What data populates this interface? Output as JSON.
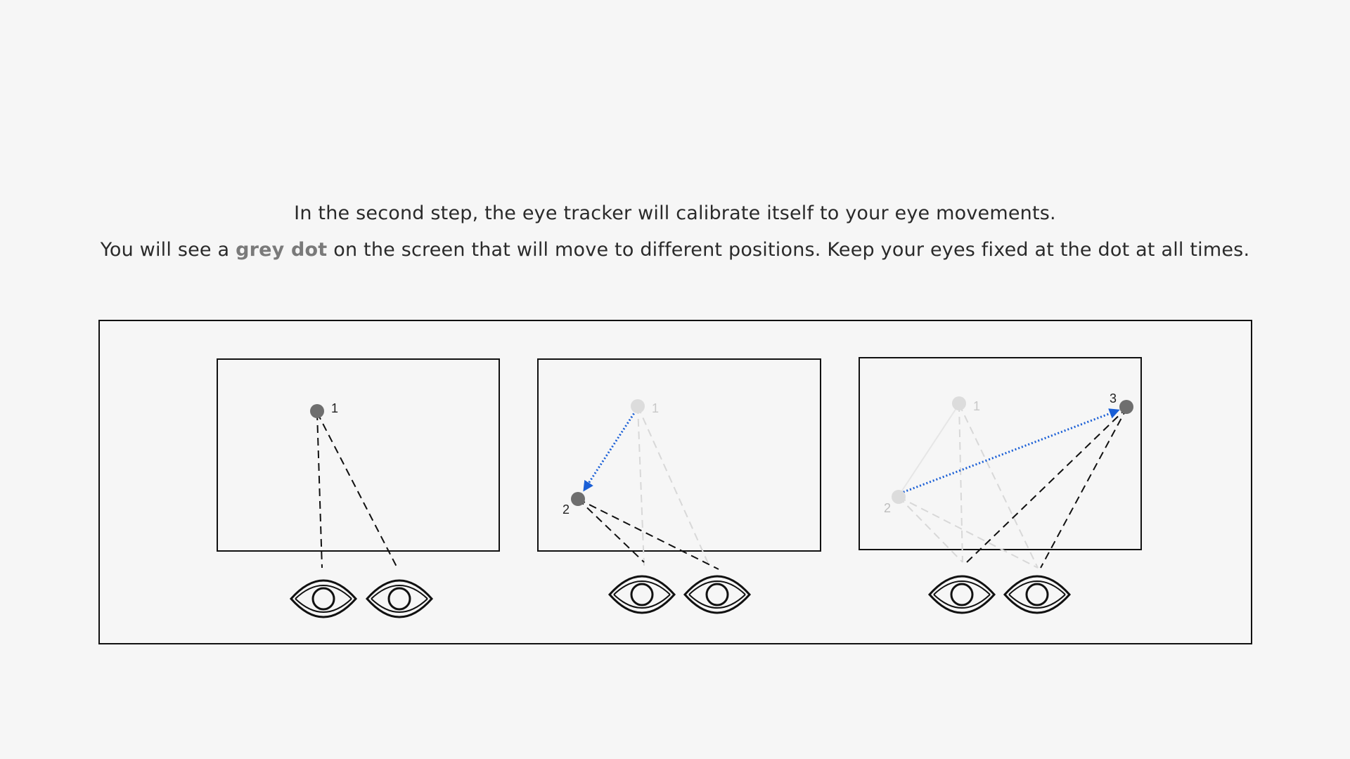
{
  "instructions": {
    "line1": "In the second step, the eye tracker will calibrate itself to your eye movements.",
    "line2_before": "You will see a",
    "line2_highlight": "grey dot",
    "line2_after": "on the screen that will move to different  positions. Keep your eyes fixed at the dot at all times."
  },
  "diagram": {
    "panels": [
      {
        "dots": [
          {
            "label": "1",
            "state": "active"
          }
        ]
      },
      {
        "dots": [
          {
            "label": "1",
            "state": "faded"
          },
          {
            "label": "2",
            "state": "active"
          }
        ]
      },
      {
        "dots": [
          {
            "label": "1",
            "state": "faded"
          },
          {
            "label": "2",
            "state": "faded"
          },
          {
            "label": "3",
            "state": "active"
          }
        ]
      }
    ],
    "colors": {
      "active_dot": "#6e6e6e",
      "faded_dot": "#dcdcdc",
      "arrow": "#1a5fd6",
      "line": "#111111",
      "faded_line": "#d8d8d8"
    }
  }
}
